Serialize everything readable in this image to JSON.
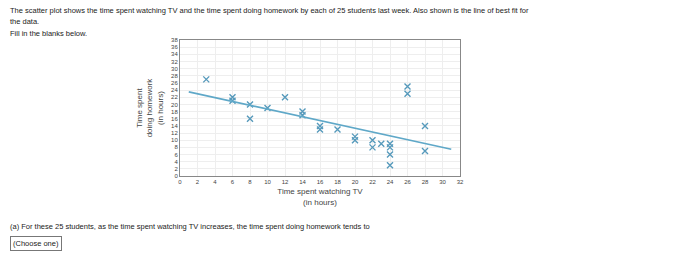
{
  "chart_data": {
    "type": "scatter",
    "annotations": [
      "The scatter plot shows the time spent watching TV and the time spent doing homework by each of 25 students last week. Also shown is the line of best fit for",
      "the data.",
      "Fill in the blanks below.",
      "(a) For these 25 students, as the time spent watching TV increases, the time spent doing homework tends to",
      "(Choose one)"
    ],
    "xlabel": "Time spent watching TV\n(in hours)",
    "ylabel": "Time spent\ndoing homework\n(in hours)",
    "series": [
      {
        "type": "scatter",
        "marker": "x",
        "color": "#5599bb",
        "x": [
          3,
          6,
          6,
          8,
          10,
          12,
          14,
          14,
          16,
          16,
          18,
          20,
          20,
          22,
          22,
          24,
          24,
          24,
          24,
          26,
          26,
          28,
          28,
          23,
          8
        ],
        "values": [
          27,
          22,
          21,
          20,
          19,
          22,
          17,
          18,
          14,
          13,
          13,
          11,
          10,
          10,
          8,
          8,
          9,
          3,
          6,
          25,
          23,
          14,
          7,
          9,
          16
        ]
      },
      {
        "type": "line",
        "color": "#5fa8c8",
        "x": [
          1,
          31
        ],
        "values": [
          23.5,
          7.5
        ]
      }
    ],
    "xlim": [
      0,
      32
    ],
    "ylim": [
      0,
      38
    ],
    "xticks": [
      0,
      2,
      4,
      6,
      8,
      10,
      12,
      14,
      16,
      18,
      20,
      22,
      24,
      26,
      28,
      30,
      32
    ],
    "yticks": [
      0,
      2,
      4,
      6,
      8,
      10,
      12,
      14,
      16,
      18,
      20,
      22,
      24,
      26,
      28,
      30,
      32,
      34,
      36,
      38
    ],
    "grid": true
  }
}
